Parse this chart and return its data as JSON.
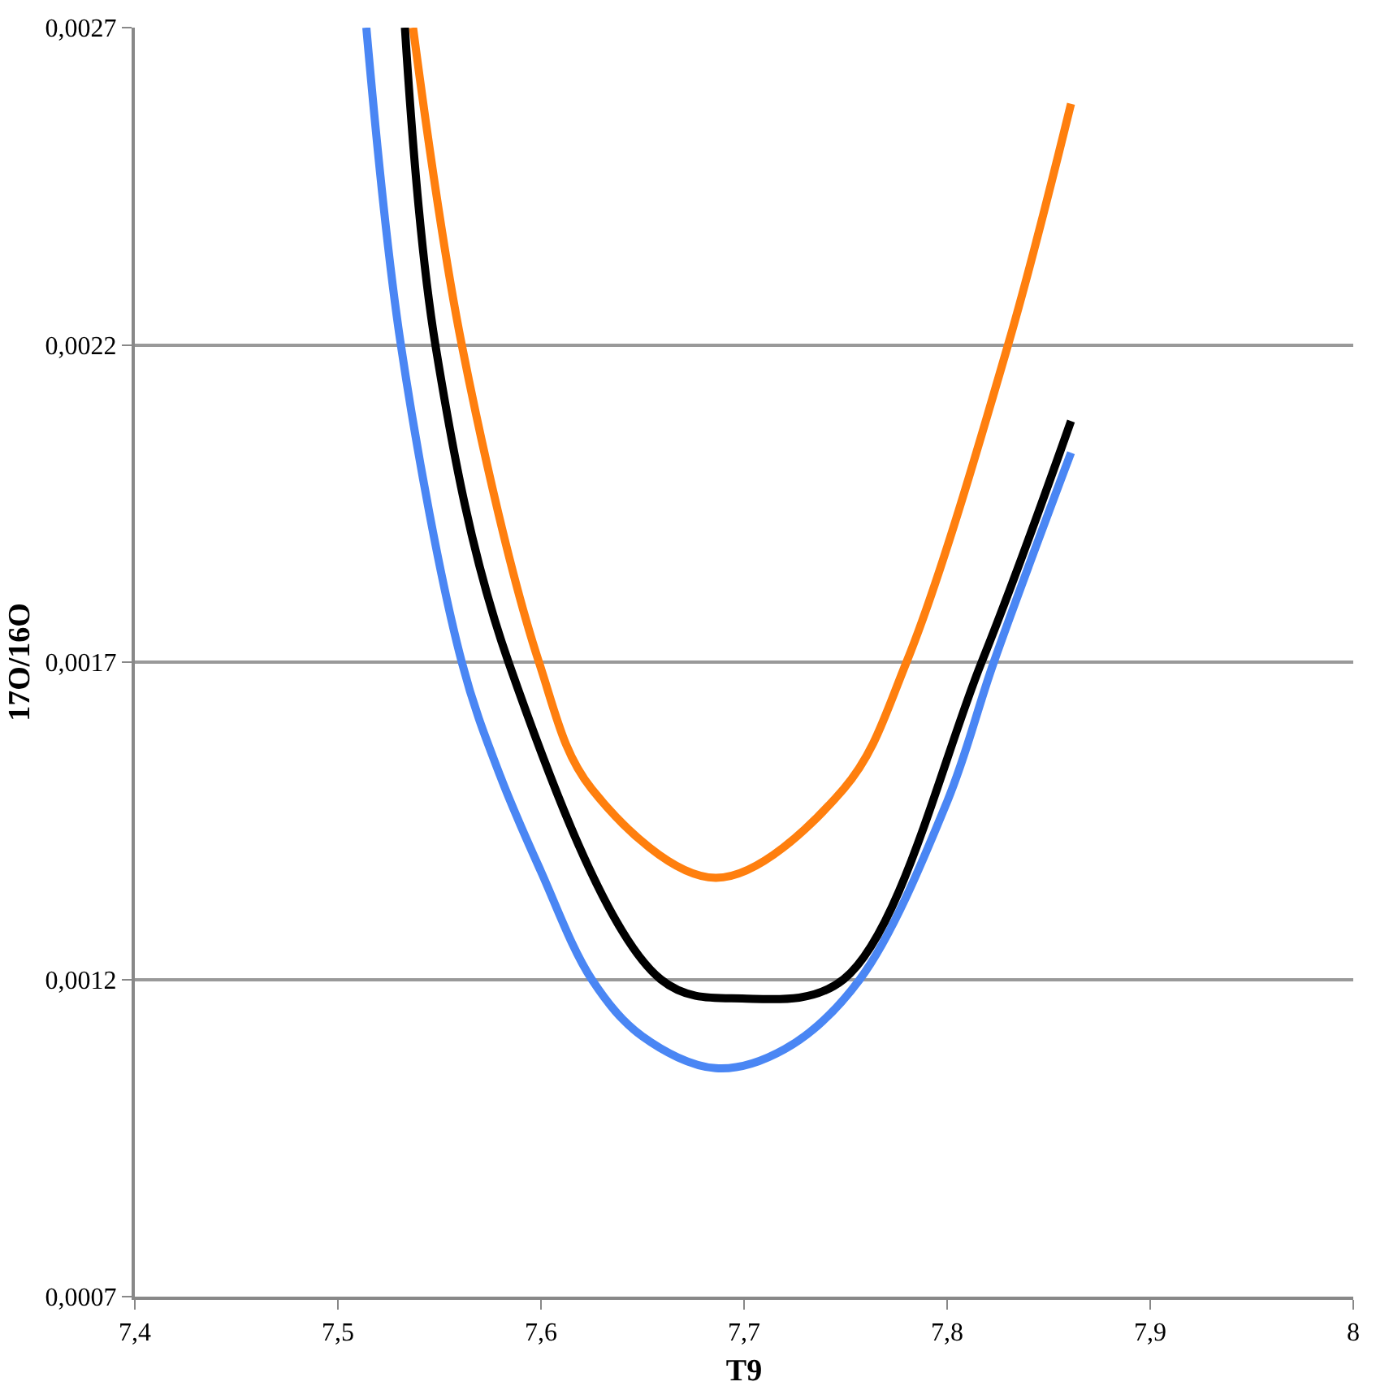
{
  "chart_data": {
    "type": "line",
    "xlabel": "T9",
    "ylabel": "17O/16O",
    "xlim": [
      7.4,
      8
    ],
    "ylim": [
      0.0007,
      0.0027
    ],
    "xticks": [
      {
        "value": 7.4,
        "label": "7,4"
      },
      {
        "value": 7.5,
        "label": "7,5"
      },
      {
        "value": 7.6,
        "label": "7,6"
      },
      {
        "value": 7.7,
        "label": "7,7"
      },
      {
        "value": 7.8,
        "label": "7,8"
      },
      {
        "value": 7.9,
        "label": "7,9"
      },
      {
        "value": 8,
        "label": "8"
      }
    ],
    "yticks": [
      {
        "value": 0.0007,
        "label": "0,0007"
      },
      {
        "value": 0.0012,
        "label": "0,0012"
      },
      {
        "value": 0.0017,
        "label": "0,0017"
      },
      {
        "value": 0.0022,
        "label": "0,0022"
      },
      {
        "value": 0.0027,
        "label": "0,0027"
      }
    ],
    "grid": "y",
    "marker": "none",
    "line_style": "solid",
    "series": [
      {
        "color": "#4a86f4",
        "x": [
          7.514,
          7.531,
          7.561,
          7.58,
          7.6,
          7.625,
          7.65,
          7.686,
          7.72,
          7.757,
          7.8,
          7.823,
          7.861
        ],
        "values": [
          0.0027,
          0.0022,
          0.0017,
          0.00152,
          0.00137,
          0.0012,
          0.00111,
          0.00106,
          0.00109,
          0.0012,
          0.00148,
          0.0017,
          0.00203
        ]
      },
      {
        "color": "#ff7f0e",
        "x": [
          7.537,
          7.561,
          7.599,
          7.625,
          7.686,
          7.749,
          7.78,
          7.83,
          7.861
        ],
        "values": [
          0.0027,
          0.0022,
          0.0017,
          0.0015,
          0.00136,
          0.0015,
          0.0017,
          0.0022,
          0.00258
        ]
      },
      {
        "color": "#000000",
        "x": [
          7.533,
          7.548,
          7.584,
          7.659,
          7.699,
          7.749,
          7.817,
          7.861
        ],
        "values": [
          0.0027,
          0.0022,
          0.0017,
          0.0012,
          0.00117,
          0.0012,
          0.0017,
          0.00208
        ]
      }
    ]
  }
}
